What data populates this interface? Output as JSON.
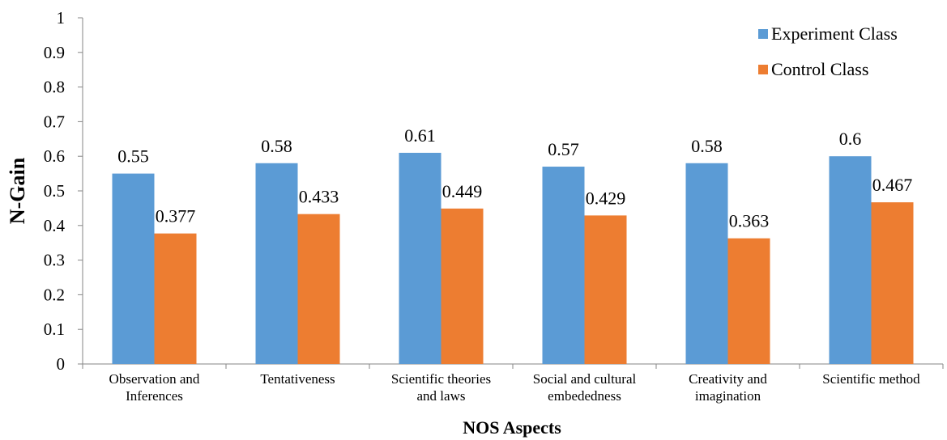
{
  "chart_data": {
    "type": "bar",
    "xlabel": "NOS Aspects",
    "ylabel": "N-Gain",
    "ylim": [
      0,
      1
    ],
    "yticks": [
      "0",
      "0.1",
      "0.2",
      "0.3",
      "0.4",
      "0.5",
      "0.6",
      "0.7",
      "0.8",
      "0.9",
      "1"
    ],
    "grid": false,
    "legend_position": "top-right",
    "categories": [
      [
        "Observation and",
        "Inferences"
      ],
      [
        "Tentativeness"
      ],
      [
        "Scientific theories",
        "and laws"
      ],
      [
        "Social and cultural",
        "embededness"
      ],
      [
        "Creativity and",
        "imagination"
      ],
      [
        "Scientific method"
      ]
    ],
    "series": [
      {
        "name": "Experiment Class",
        "color": "#5b9bd5",
        "values": [
          0.55,
          0.58,
          0.61,
          0.57,
          0.58,
          0.6
        ],
        "labels": [
          "0.55",
          "0.58",
          "0.61",
          "0.57",
          "0.58",
          "0.6"
        ]
      },
      {
        "name": "Control Class",
        "color": "#ed7d31",
        "values": [
          0.377,
          0.433,
          0.449,
          0.429,
          0.363,
          0.467
        ],
        "labels": [
          "0.377",
          "0.433",
          "0.449",
          "0.429",
          "0.363",
          "0.467"
        ]
      }
    ]
  }
}
